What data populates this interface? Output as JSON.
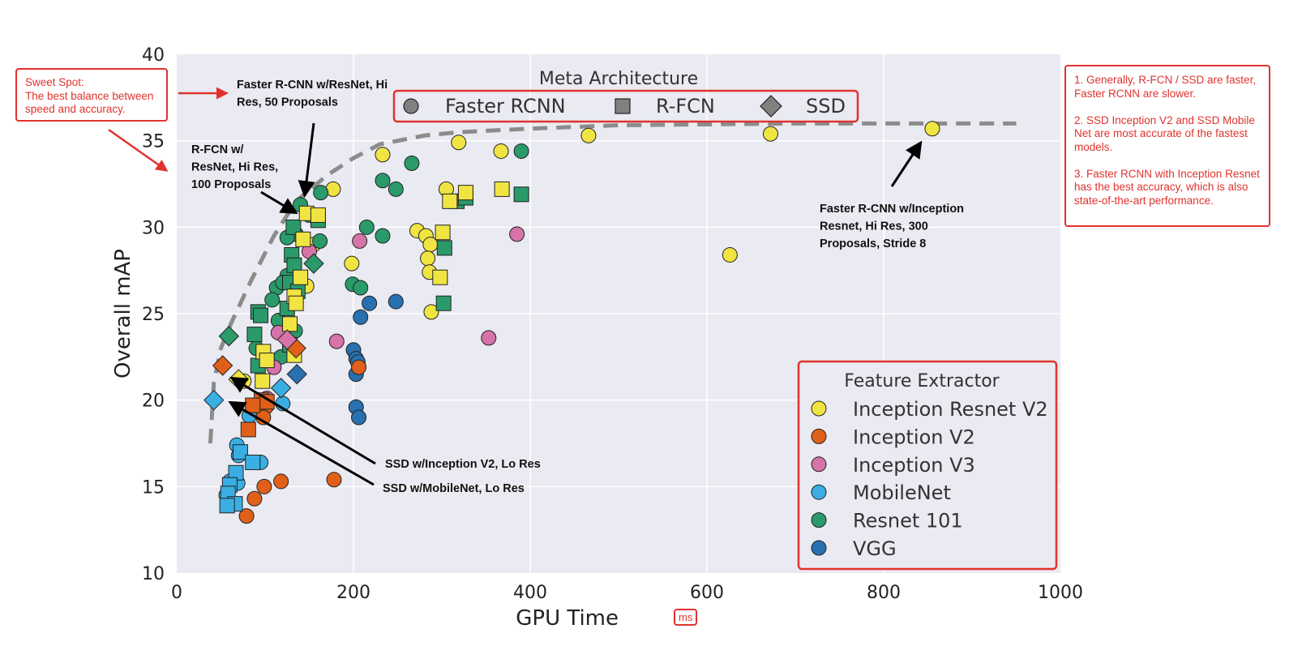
{
  "chart_data": {
    "type": "scatter",
    "xlabel": "GPU Time",
    "xlabel_unit": "ms",
    "ylabel": "Overall mAP",
    "xlim": [
      0,
      1000
    ],
    "ylim": [
      10,
      40
    ],
    "xticks": [
      0,
      200,
      400,
      600,
      800,
      1000
    ],
    "yticks": [
      10,
      15,
      20,
      25,
      30,
      35,
      40
    ],
    "grid": true,
    "meta_legend": {
      "title": "Meta Architecture",
      "entries": [
        {
          "label": "Faster RCNN",
          "marker": "circle"
        },
        {
          "label": "R-FCN",
          "marker": "square"
        },
        {
          "label": "SSD",
          "marker": "diamond"
        }
      ],
      "placement": "top-center"
    },
    "feature_legend": {
      "title": "Feature Extractor",
      "entries": [
        {
          "label": "Inception Resnet V2",
          "color": "#f0e442"
        },
        {
          "label": "Inception V2",
          "color": "#e0601a"
        },
        {
          "label": "Inception V3",
          "color": "#d673a8"
        },
        {
          "label": "MobileNet",
          "color": "#3aaee2"
        },
        {
          "label": "Resnet 101",
          "color": "#2a9a6a"
        },
        {
          "label": "VGG",
          "color": "#2870b0"
        }
      ],
      "placement": "bottom-right"
    },
    "frontier": [
      [
        38,
        17.5
      ],
      [
        42,
        21
      ],
      [
        50,
        23
      ],
      [
        62,
        24.5
      ],
      [
        85,
        27
      ],
      [
        110,
        29.5
      ],
      [
        135,
        31.5
      ],
      [
        170,
        33
      ],
      [
        200,
        34
      ],
      [
        230,
        34.8
      ],
      [
        280,
        35.3
      ],
      [
        320,
        35.5
      ],
      [
        400,
        35.7
      ],
      [
        500,
        35.9
      ],
      [
        700,
        36
      ],
      [
        950,
        36
      ]
    ],
    "points": [
      {
        "x": 233,
        "y": 34.2,
        "m": "circle",
        "f": "Inception Resnet V2"
      },
      {
        "x": 319,
        "y": 34.9,
        "m": "circle",
        "f": "Inception Resnet V2"
      },
      {
        "x": 367,
        "y": 34.4,
        "m": "circle",
        "f": "Inception Resnet V2"
      },
      {
        "x": 466,
        "y": 35.3,
        "m": "circle",
        "f": "Inception Resnet V2"
      },
      {
        "x": 672,
        "y": 35.4,
        "m": "circle",
        "f": "Inception Resnet V2"
      },
      {
        "x": 855,
        "y": 35.7,
        "m": "circle",
        "f": "Inception Resnet V2"
      },
      {
        "x": 626,
        "y": 28.4,
        "m": "circle",
        "f": "Inception Resnet V2"
      },
      {
        "x": 177,
        "y": 32.2,
        "m": "circle",
        "f": "Inception Resnet V2"
      },
      {
        "x": 155,
        "y": 29.0,
        "m": "circle",
        "f": "Inception Resnet V2"
      },
      {
        "x": 305,
        "y": 32.2,
        "m": "circle",
        "f": "Inception Resnet V2"
      },
      {
        "x": 272,
        "y": 29.8,
        "m": "circle",
        "f": "Inception Resnet V2"
      },
      {
        "x": 282,
        "y": 29.5,
        "m": "circle",
        "f": "Inception Resnet V2"
      },
      {
        "x": 287,
        "y": 29.0,
        "m": "circle",
        "f": "Inception Resnet V2"
      },
      {
        "x": 284,
        "y": 28.2,
        "m": "circle",
        "f": "Inception Resnet V2"
      },
      {
        "x": 286,
        "y": 27.4,
        "m": "circle",
        "f": "Inception Resnet V2"
      },
      {
        "x": 288,
        "y": 25.1,
        "m": "circle",
        "f": "Inception Resnet V2"
      },
      {
        "x": 198,
        "y": 27.9,
        "m": "circle",
        "f": "Inception Resnet V2"
      },
      {
        "x": 147,
        "y": 26.6,
        "m": "circle",
        "f": "Inception Resnet V2"
      },
      {
        "x": 76,
        "y": 21.1,
        "m": "circle",
        "f": "Inception Resnet V2"
      },
      {
        "x": 135,
        "y": 29.6,
        "m": "circle",
        "f": "Resnet 101"
      },
      {
        "x": 266,
        "y": 33.7,
        "m": "circle",
        "f": "Resnet 101"
      },
      {
        "x": 390,
        "y": 34.4,
        "m": "circle",
        "f": "Resnet 101"
      },
      {
        "x": 233,
        "y": 32.7,
        "m": "circle",
        "f": "Resnet 101"
      },
      {
        "x": 248,
        "y": 32.2,
        "m": "circle",
        "f": "Resnet 101"
      },
      {
        "x": 163,
        "y": 32.0,
        "m": "circle",
        "f": "Resnet 101"
      },
      {
        "x": 140,
        "y": 31.3,
        "m": "circle",
        "f": "Resnet 101"
      },
      {
        "x": 150,
        "y": 30.7,
        "m": "circle",
        "f": "Resnet 101"
      },
      {
        "x": 125,
        "y": 29.4,
        "m": "circle",
        "f": "Resnet 101"
      },
      {
        "x": 162,
        "y": 29.2,
        "m": "circle",
        "f": "Resnet 101"
      },
      {
        "x": 233,
        "y": 29.5,
        "m": "circle",
        "f": "Resnet 101"
      },
      {
        "x": 215,
        "y": 30.0,
        "m": "circle",
        "f": "Resnet 101"
      },
      {
        "x": 125,
        "y": 27.2,
        "m": "circle",
        "f": "Resnet 101"
      },
      {
        "x": 113,
        "y": 26.5,
        "m": "circle",
        "f": "Resnet 101"
      },
      {
        "x": 120,
        "y": 26.8,
        "m": "circle",
        "f": "Resnet 101"
      },
      {
        "x": 108,
        "y": 25.8,
        "m": "circle",
        "f": "Resnet 101"
      },
      {
        "x": 199,
        "y": 26.7,
        "m": "circle",
        "f": "Resnet 101"
      },
      {
        "x": 208,
        "y": 26.5,
        "m": "circle",
        "f": "Resnet 101"
      },
      {
        "x": 115,
        "y": 24.6,
        "m": "circle",
        "f": "Resnet 101"
      },
      {
        "x": 90,
        "y": 23.0,
        "m": "circle",
        "f": "Resnet 101"
      },
      {
        "x": 118,
        "y": 22.5,
        "m": "circle",
        "f": "Resnet 101"
      },
      {
        "x": 134,
        "y": 24.0,
        "m": "circle",
        "f": "Resnet 101"
      },
      {
        "x": 218,
        "y": 25.6,
        "m": "circle",
        "f": "VGG"
      },
      {
        "x": 248,
        "y": 25.7,
        "m": "circle",
        "f": "VGG"
      },
      {
        "x": 208,
        "y": 24.8,
        "m": "circle",
        "f": "VGG"
      },
      {
        "x": 200,
        "y": 22.9,
        "m": "circle",
        "f": "VGG"
      },
      {
        "x": 203,
        "y": 22.4,
        "m": "circle",
        "f": "VGG"
      },
      {
        "x": 205,
        "y": 22.2,
        "m": "circle",
        "f": "VGG"
      },
      {
        "x": 203,
        "y": 21.5,
        "m": "circle",
        "f": "VGG"
      },
      {
        "x": 203,
        "y": 19.6,
        "m": "circle",
        "f": "VGG"
      },
      {
        "x": 206,
        "y": 19.0,
        "m": "circle",
        "f": "VGG"
      },
      {
        "x": 207,
        "y": 29.2,
        "m": "circle",
        "f": "Inception V3"
      },
      {
        "x": 385,
        "y": 29.6,
        "m": "circle",
        "f": "Inception V3"
      },
      {
        "x": 353,
        "y": 23.6,
        "m": "circle",
        "f": "Inception V3"
      },
      {
        "x": 181,
        "y": 23.4,
        "m": "circle",
        "f": "Inception V3"
      },
      {
        "x": 115,
        "y": 23.9,
        "m": "circle",
        "f": "Inception V3"
      },
      {
        "x": 110,
        "y": 21.9,
        "m": "circle",
        "f": "Inception V3"
      },
      {
        "x": 102,
        "y": 20.1,
        "m": "circle",
        "f": "Inception V3"
      },
      {
        "x": 150,
        "y": 28.6,
        "m": "circle",
        "f": "Inception V3"
      },
      {
        "x": 206,
        "y": 21.9,
        "m": "circle",
        "f": "Inception V2"
      },
      {
        "x": 101,
        "y": 19.6,
        "m": "circle",
        "f": "Inception V2"
      },
      {
        "x": 98,
        "y": 19.0,
        "m": "circle",
        "f": "Inception V2"
      },
      {
        "x": 99,
        "y": 15.0,
        "m": "circle",
        "f": "Inception V2"
      },
      {
        "x": 88,
        "y": 14.3,
        "m": "circle",
        "f": "Inception V2"
      },
      {
        "x": 118,
        "y": 15.3,
        "m": "circle",
        "f": "Inception V2"
      },
      {
        "x": 178,
        "y": 15.4,
        "m": "circle",
        "f": "Inception V2"
      },
      {
        "x": 79,
        "y": 13.3,
        "m": "circle",
        "f": "Inception V2"
      },
      {
        "x": 120,
        "y": 19.8,
        "m": "circle",
        "f": "MobileNet"
      },
      {
        "x": 82,
        "y": 19.1,
        "m": "circle",
        "f": "MobileNet"
      },
      {
        "x": 68,
        "y": 17.4,
        "m": "circle",
        "f": "MobileNet"
      },
      {
        "x": 70,
        "y": 16.8,
        "m": "circle",
        "f": "MobileNet"
      },
      {
        "x": 95,
        "y": 16.4,
        "m": "circle",
        "f": "MobileNet"
      },
      {
        "x": 60,
        "y": 15.3,
        "m": "circle",
        "f": "MobileNet"
      },
      {
        "x": 56,
        "y": 14.5,
        "m": "circle",
        "f": "MobileNet"
      },
      {
        "x": 65,
        "y": 14.0,
        "m": "circle",
        "f": "MobileNet"
      },
      {
        "x": 69,
        "y": 15.2,
        "m": "circle",
        "f": "MobileNet"
      },
      {
        "x": 317,
        "y": 31.5,
        "m": "square",
        "f": "Resnet 101"
      },
      {
        "x": 327,
        "y": 31.7,
        "m": "square",
        "f": "Resnet 101"
      },
      {
        "x": 390,
        "y": 31.9,
        "m": "square",
        "f": "Resnet 101"
      },
      {
        "x": 303,
        "y": 28.8,
        "m": "square",
        "f": "Resnet 101"
      },
      {
        "x": 302,
        "y": 25.6,
        "m": "square",
        "f": "Resnet 101"
      },
      {
        "x": 160,
        "y": 30.4,
        "m": "square",
        "f": "Resnet 101"
      },
      {
        "x": 132,
        "y": 30.0,
        "m": "square",
        "f": "Resnet 101"
      },
      {
        "x": 130,
        "y": 28.4,
        "m": "square",
        "f": "Resnet 101"
      },
      {
        "x": 133,
        "y": 27.8,
        "m": "square",
        "f": "Resnet 101"
      },
      {
        "x": 128,
        "y": 26.8,
        "m": "square",
        "f": "Resnet 101"
      },
      {
        "x": 137,
        "y": 26.3,
        "m": "square",
        "f": "Resnet 101"
      },
      {
        "x": 92,
        "y": 25.1,
        "m": "square",
        "f": "Resnet 101"
      },
      {
        "x": 95,
        "y": 24.9,
        "m": "square",
        "f": "Resnet 101"
      },
      {
        "x": 88,
        "y": 23.8,
        "m": "square",
        "f": "Resnet 101"
      },
      {
        "x": 125,
        "y": 25.3,
        "m": "square",
        "f": "Resnet 101"
      },
      {
        "x": 128,
        "y": 23.2,
        "m": "square",
        "f": "Resnet 101"
      },
      {
        "x": 92,
        "y": 22.0,
        "m": "square",
        "f": "Resnet 101"
      },
      {
        "x": 147,
        "y": 30.8,
        "m": "square",
        "f": "Inception Resnet V2"
      },
      {
        "x": 160,
        "y": 30.7,
        "m": "square",
        "f": "Inception Resnet V2"
      },
      {
        "x": 143,
        "y": 29.3,
        "m": "square",
        "f": "Inception Resnet V2"
      },
      {
        "x": 140,
        "y": 27.1,
        "m": "square",
        "f": "Inception Resnet V2"
      },
      {
        "x": 133,
        "y": 26.0,
        "m": "square",
        "f": "Inception Resnet V2"
      },
      {
        "x": 135,
        "y": 25.6,
        "m": "square",
        "f": "Inception Resnet V2"
      },
      {
        "x": 128,
        "y": 24.4,
        "m": "square",
        "f": "Inception Resnet V2"
      },
      {
        "x": 98,
        "y": 22.8,
        "m": "square",
        "f": "Inception Resnet V2"
      },
      {
        "x": 102,
        "y": 22.3,
        "m": "square",
        "f": "Inception Resnet V2"
      },
      {
        "x": 97,
        "y": 21.1,
        "m": "square",
        "f": "Inception Resnet V2"
      },
      {
        "x": 133,
        "y": 22.6,
        "m": "square",
        "f": "Inception Resnet V2"
      },
      {
        "x": 309,
        "y": 31.5,
        "m": "square",
        "f": "Inception Resnet V2"
      },
      {
        "x": 327,
        "y": 32.0,
        "m": "square",
        "f": "Inception Resnet V2"
      },
      {
        "x": 368,
        "y": 32.2,
        "m": "square",
        "f": "Inception Resnet V2"
      },
      {
        "x": 301,
        "y": 29.7,
        "m": "square",
        "f": "Inception Resnet V2"
      },
      {
        "x": 298,
        "y": 27.1,
        "m": "square",
        "f": "Inception Resnet V2"
      },
      {
        "x": 96,
        "y": 20.0,
        "m": "square",
        "f": "Inception V2"
      },
      {
        "x": 102,
        "y": 19.9,
        "m": "square",
        "f": "Inception V2"
      },
      {
        "x": 86,
        "y": 19.7,
        "m": "square",
        "f": "Inception V2"
      },
      {
        "x": 81,
        "y": 18.3,
        "m": "square",
        "f": "Inception V2"
      },
      {
        "x": 72,
        "y": 17.0,
        "m": "square",
        "f": "MobileNet"
      },
      {
        "x": 67,
        "y": 15.8,
        "m": "square",
        "f": "MobileNet"
      },
      {
        "x": 60,
        "y": 15.1,
        "m": "square",
        "f": "MobileNet"
      },
      {
        "x": 58,
        "y": 14.6,
        "m": "square",
        "f": "MobileNet"
      },
      {
        "x": 66,
        "y": 14.0,
        "m": "square",
        "f": "MobileNet"
      },
      {
        "x": 57,
        "y": 13.9,
        "m": "square",
        "f": "MobileNet"
      },
      {
        "x": 86,
        "y": 16.4,
        "m": "square",
        "f": "MobileNet"
      },
      {
        "x": 155,
        "y": 27.9,
        "m": "diamond",
        "f": "Resnet 101"
      },
      {
        "x": 59,
        "y": 23.7,
        "m": "diamond",
        "f": "Resnet 101"
      },
      {
        "x": 135,
        "y": 23.0,
        "m": "diamond",
        "f": "Inception V2"
      },
      {
        "x": 52,
        "y": 22.0,
        "m": "diamond",
        "f": "Inception V2"
      },
      {
        "x": 125,
        "y": 23.5,
        "m": "diamond",
        "f": "Inception V3"
      },
      {
        "x": 136,
        "y": 21.5,
        "m": "diamond",
        "f": "VGG"
      },
      {
        "x": 118,
        "y": 20.7,
        "m": "diamond",
        "f": "MobileNet"
      },
      {
        "x": 42,
        "y": 20.0,
        "m": "diamond",
        "f": "MobileNet"
      },
      {
        "x": 70,
        "y": 21.2,
        "m": "diamond",
        "f": "Inception Resnet V2"
      }
    ],
    "annotations": [
      {
        "id": "a1",
        "text": "Faster R-CNN w/ResNet, Hi\nRes, 50 Proposals"
      },
      {
        "id": "a2",
        "text": "R-FCN w/\nResNet, Hi Res,\n100 Proposals"
      },
      {
        "id": "a3",
        "text": "Faster R-CNN w/Inception\nResnet, Hi Res, 300\nProposals, Stride 8"
      },
      {
        "id": "a4",
        "text": "SSD w/Inception V2, Lo Res"
      },
      {
        "id": "a5",
        "text": "SSD w/MobileNet, Lo Res"
      }
    ]
  },
  "notes": {
    "sweet_spot": "Sweet Spot:\nThe best balance between\nspeed and accuracy.",
    "summary": "1. Generally, R-FCN / SSD are faster,\nFaster RCNN are slower.\n\n2. SSD Inception V2 and SSD Mobile\nNet are most accurate of the fastest\nmodels.\n\n3. Faster RCNN with Inception Resnet\nhas the best accuracy, which is also\nstate-of-the-art performance."
  },
  "colors": {
    "plot_bg": "#eaeaf2",
    "grid": "#ffffff",
    "highlight_red": "#e0332e",
    "frontier": "#8c8c8c"
  }
}
